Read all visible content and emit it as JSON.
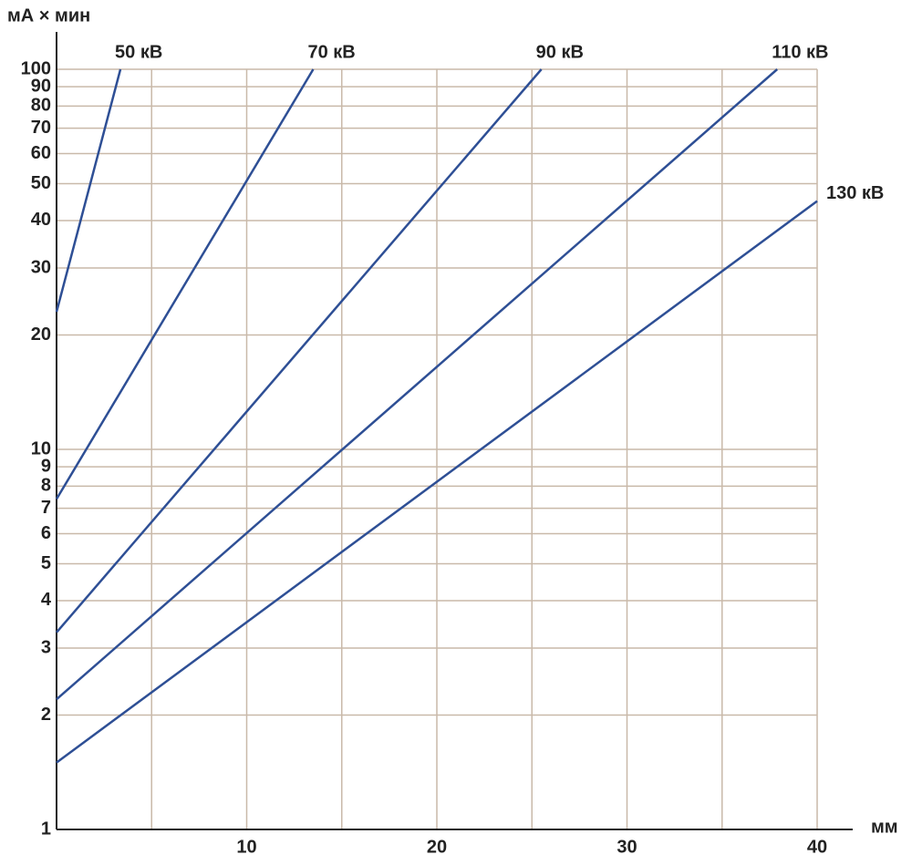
{
  "chart_data": {
    "type": "line",
    "y_label": "мА × мин",
    "x_label": "мм",
    "ylog": true,
    "grid": true,
    "grid_color": "#c9b9a9",
    "xlim": [
      0,
      40
    ],
    "ylim": [
      1,
      100
    ],
    "xticks": [
      10,
      20,
      30,
      40
    ],
    "x_minor_ticks": [
      5,
      15,
      25,
      35
    ],
    "yticks": [
      1,
      2,
      3,
      4,
      5,
      6,
      7,
      8,
      9,
      10,
      20,
      30,
      40,
      50,
      60,
      70,
      80,
      90,
      100
    ],
    "series": [
      {
        "name": "50 кВ",
        "color": "#2e4f95",
        "x": [
          0,
          3.36
        ],
        "values": [
          23,
          100
        ]
      },
      {
        "name": "70 кВ",
        "color": "#2e4f95",
        "x": [
          0,
          13.5
        ],
        "values": [
          7.4,
          100
        ]
      },
      {
        "name": "90 кВ",
        "color": "#2e4f95",
        "x": [
          0,
          25.5
        ],
        "values": [
          3.3,
          100
        ]
      },
      {
        "name": "110 кВ",
        "color": "#2e4f95",
        "x": [
          0,
          37.9
        ],
        "values": [
          2.2,
          100
        ]
      },
      {
        "name": "130 кВ",
        "color": "#2e4f95",
        "x": [
          0,
          40
        ],
        "values": [
          1.5,
          45
        ]
      }
    ]
  }
}
